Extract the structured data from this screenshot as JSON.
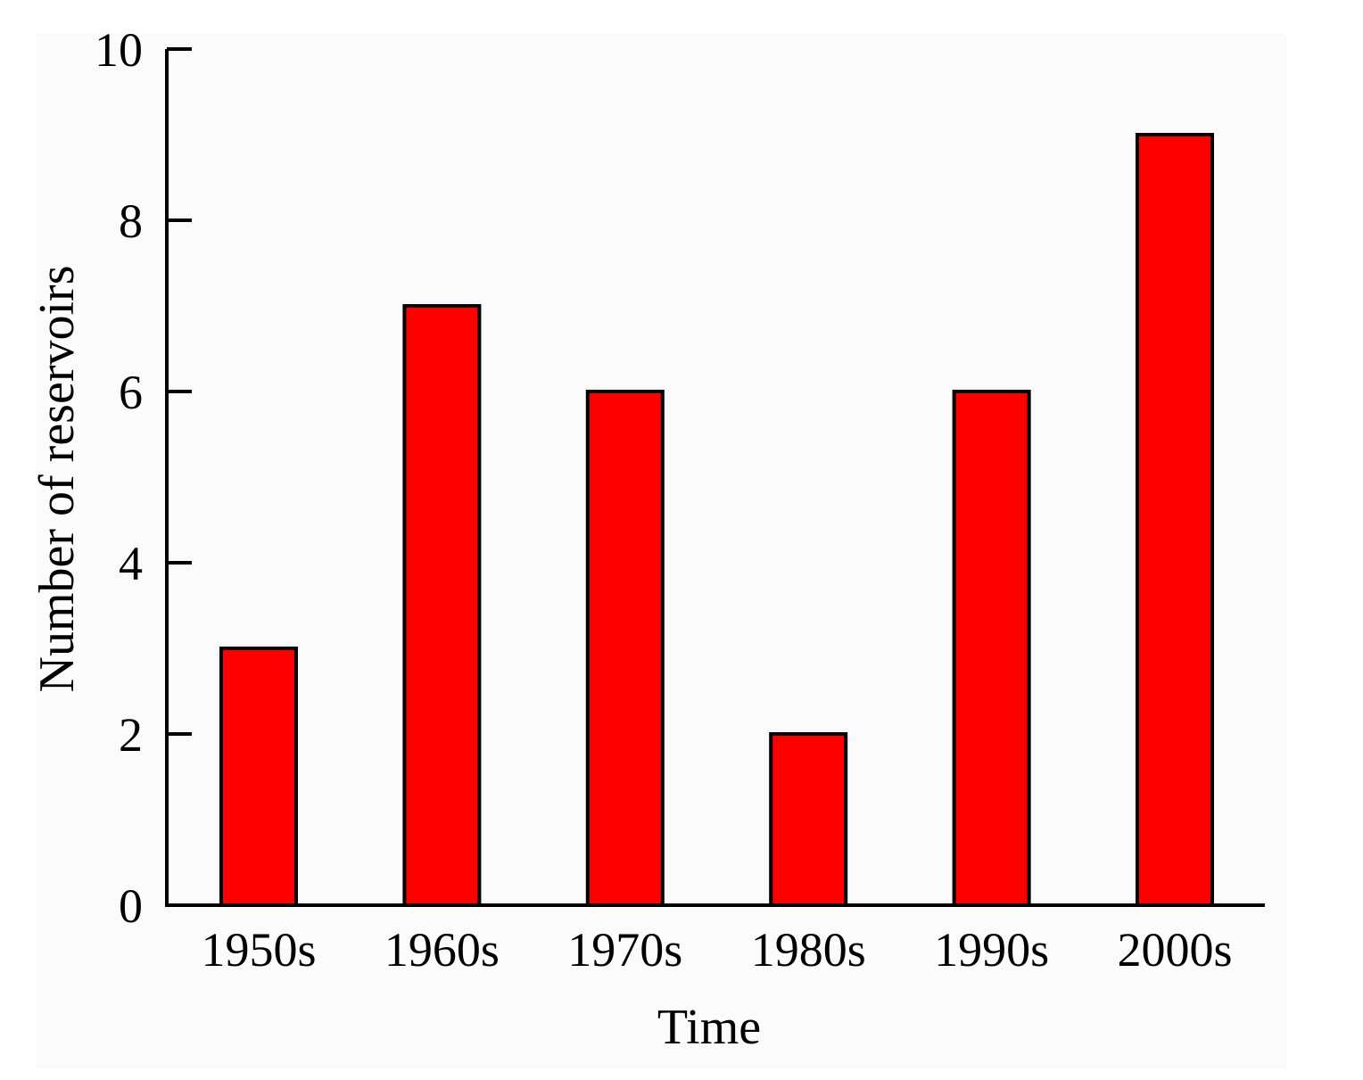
{
  "chart_data": {
    "type": "bar",
    "title": "",
    "xlabel": "Time",
    "ylabel": "Number of reservoirs",
    "categories": [
      "1950s",
      "1960s",
      "1970s",
      "1980s",
      "1990s",
      "2000s"
    ],
    "values": [
      3,
      7,
      6,
      2,
      6,
      9
    ],
    "ylim": [
      0,
      10
    ],
    "yticks": [
      0,
      2,
      4,
      6,
      8,
      10
    ],
    "ytick_labels": [
      "0",
      "2",
      "4",
      "6",
      "8",
      "10"
    ],
    "grid": false,
    "legend": "none",
    "bar_color": "#ff0000",
    "bar_edge_color": "#000000"
  }
}
